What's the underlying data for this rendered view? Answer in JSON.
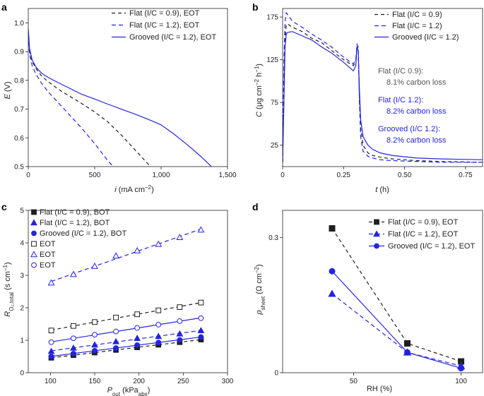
{
  "colors": {
    "black": "#1f1f1f",
    "gray": "#555555",
    "blue": "#2424e0"
  },
  "chart_data": [
    {
      "panel": "a",
      "type": "line",
      "xlabel": "i (mA cm−2)",
      "ylabel": "E (V)",
      "xlim": [
        0,
        1500
      ],
      "ylim": [
        0.5,
        1.05
      ],
      "xticks": [
        0,
        500,
        1000,
        1500
      ],
      "xtick_labels": [
        "0",
        "500",
        "1,000",
        "1,500"
      ],
      "yticks": [
        0.5,
        0.6,
        0.7,
        0.8,
        0.9,
        1.0
      ],
      "ytick_labels": [
        "0.5",
        "0.6",
        "0.7",
        "0.8",
        "0.9",
        "1.0"
      ],
      "legend_position": "top-right",
      "series": [
        {
          "name": "Flat (I/C = 0.9), EOT",
          "color": "black",
          "dash": "5,4",
          "x": [
            0,
            10,
            30,
            60,
            100,
            150,
            200,
            250,
            300,
            400,
            500,
            600,
            700,
            800,
            900,
            950
          ],
          "y": [
            0.97,
            0.9,
            0.865,
            0.84,
            0.815,
            0.795,
            0.778,
            0.762,
            0.748,
            0.72,
            0.69,
            0.655,
            0.61,
            0.56,
            0.51,
            0.485
          ]
        },
        {
          "name": "Flat (I/C = 1.2), EOT",
          "color": "blue",
          "dash": "6,4",
          "x": [
            0,
            10,
            30,
            60,
            100,
            150,
            200,
            250,
            300,
            400,
            500,
            600,
            660
          ],
          "y": [
            0.96,
            0.89,
            0.85,
            0.82,
            0.79,
            0.76,
            0.735,
            0.71,
            0.685,
            0.635,
            0.58,
            0.52,
            0.49
          ]
        },
        {
          "name": "Grooved (I/C = 1.2), EOT",
          "color": "blue",
          "dash": "",
          "x": [
            0,
            10,
            30,
            60,
            100,
            150,
            200,
            300,
            400,
            500,
            600,
            700,
            800,
            900,
            1000,
            1100,
            1200,
            1300,
            1390
          ],
          "y": [
            0.98,
            0.91,
            0.87,
            0.845,
            0.825,
            0.81,
            0.798,
            0.775,
            0.752,
            0.735,
            0.717,
            0.7,
            0.683,
            0.665,
            0.645,
            0.612,
            0.575,
            0.535,
            0.495
          ]
        }
      ]
    },
    {
      "panel": "b",
      "type": "line",
      "xlabel": "t (h)",
      "ylabel": "C (μg cm−2 h−1)",
      "xlim": [
        0,
        0.82
      ],
      "ylim": [
        0,
        185
      ],
      "xticks": [
        0,
        0.25,
        0.5,
        0.75
      ],
      "xtick_labels": [
        "0",
        "0.25",
        "0.50",
        "0.75"
      ],
      "yticks": [
        25,
        75,
        125,
        175
      ],
      "ytick_labels": [
        "25",
        "75",
        "125",
        "175"
      ],
      "legend_position": "top-right",
      "series": [
        {
          "name": "Flat (I/C = 0.9)",
          "color": "black",
          "dash": "5,4",
          "x": [
            0,
            0.005,
            0.01,
            0.015,
            0.02,
            0.04,
            0.08,
            0.12,
            0.16,
            0.2,
            0.25,
            0.29,
            0.3,
            0.305,
            0.31,
            0.315,
            0.32,
            0.33,
            0.35,
            0.37,
            0.4,
            0.45,
            0.55,
            0.65,
            0.82
          ],
          "y": [
            5,
            90,
            150,
            165,
            167,
            163,
            158,
            150,
            145,
            136,
            125,
            118,
            122,
            140,
            138,
            80,
            45,
            25,
            16,
            13,
            11,
            9,
            7,
            6,
            5
          ]
        },
        {
          "name": "Flat (I/C = 1.2)",
          "color": "blue",
          "dash": "6,4",
          "x": [
            0,
            0.005,
            0.01,
            0.015,
            0.02,
            0.04,
            0.08,
            0.12,
            0.16,
            0.2,
            0.25,
            0.29,
            0.3,
            0.305,
            0.31,
            0.315,
            0.32,
            0.33,
            0.35,
            0.37,
            0.4,
            0.45,
            0.55,
            0.65,
            0.82
          ],
          "y": [
            5,
            120,
            170,
            180,
            178,
            170,
            163,
            155,
            148,
            140,
            128,
            120,
            125,
            143,
            140,
            75,
            35,
            18,
            12,
            10,
            8,
            7,
            6,
            5,
            5
          ]
        },
        {
          "name": "Grooved (I/C = 1.2)",
          "color": "blue",
          "dash": "",
          "x": [
            0,
            0.005,
            0.01,
            0.015,
            0.02,
            0.04,
            0.08,
            0.12,
            0.16,
            0.2,
            0.25,
            0.29,
            0.3,
            0.305,
            0.31,
            0.315,
            0.32,
            0.33,
            0.35,
            0.37,
            0.4,
            0.45,
            0.55,
            0.65,
            0.82
          ],
          "y": [
            5,
            70,
            140,
            155,
            157,
            158,
            153,
            148,
            140,
            133,
            122,
            112,
            118,
            140,
            135,
            90,
            55,
            35,
            25,
            20,
            16,
            13,
            10,
            9,
            8
          ]
        }
      ],
      "annotations": [
        {
          "line1": "Flat (I/C 0.9):",
          "line2": "8.1% carbon loss",
          "color": "gray"
        },
        {
          "line1": "Flat (I/C 1.2):",
          "line2": "8.2% carbon loss",
          "color": "blue"
        },
        {
          "line1": "Grooved (I/C 1.2):",
          "line2": "8.2% carbon loss",
          "color": "blue"
        }
      ]
    },
    {
      "panel": "c",
      "type": "scatter",
      "xlabel": "P_out (kPa_abs)",
      "ylabel": "R_O2,total (s cm−1)",
      "xlim": [
        75,
        300
      ],
      "ylim": [
        0,
        5
      ],
      "xticks": [
        100,
        150,
        200,
        250,
        300
      ],
      "xtick_labels": [
        "100",
        "150",
        "200",
        "250",
        "300"
      ],
      "yticks": [
        0,
        1,
        2,
        3,
        4,
        5
      ],
      "ytick_labels": [
        "0",
        "1",
        "2",
        "3",
        "4",
        "5"
      ],
      "x": [
        101,
        126,
        150,
        174,
        198,
        222,
        246,
        270
      ],
      "legend_position": "top-left",
      "series": [
        {
          "name": "Flat (I/C = 0.9), BOT",
          "color": "black",
          "marker": "square",
          "filled": true,
          "dash": "5,4",
          "values": [
            0.46,
            0.54,
            0.62,
            0.7,
            0.78,
            0.86,
            0.94,
            1.02
          ]
        },
        {
          "name": "Flat (I/C = 1.2), BOT",
          "color": "blue",
          "marker": "triangle",
          "filled": true,
          "dash": "6,4",
          "values": [
            0.66,
            0.76,
            0.86,
            0.96,
            1.06,
            1.12,
            1.2,
            1.3
          ]
        },
        {
          "name": "Grooved (I/C = 1.2), BOT",
          "color": "blue",
          "marker": "circle",
          "filled": true,
          "dash": "",
          "values": [
            0.5,
            0.59,
            0.68,
            0.76,
            0.85,
            0.93,
            1.01,
            1.1
          ]
        },
        {
          "name": "EOT",
          "color": "black",
          "marker": "square",
          "filled": false,
          "dash": "5,4",
          "values": [
            1.3,
            1.44,
            1.56,
            1.7,
            1.8,
            1.92,
            2.02,
            2.16
          ]
        },
        {
          "name": "EOT",
          "color": "blue",
          "marker": "triangle",
          "filled": false,
          "dash": "6,4",
          "values": [
            2.77,
            3.03,
            3.28,
            3.6,
            3.76,
            3.96,
            4.17,
            4.4
          ]
        },
        {
          "name": "EOT",
          "color": "blue",
          "marker": "circle",
          "filled": false,
          "dash": "",
          "values": [
            0.94,
            1.06,
            1.17,
            1.27,
            1.38,
            1.48,
            1.59,
            1.68
          ]
        }
      ]
    },
    {
      "panel": "d",
      "type": "line",
      "xlabel": "RH (%)",
      "ylabel": "ρ_sheet (Ω cm−2)",
      "xlim": [
        17,
        110
      ],
      "ylim": [
        0,
        0.36
      ],
      "xticks": [
        50,
        100
      ],
      "xtick_labels": [
        "50",
        "100"
      ],
      "yticks": [
        0,
        0.3
      ],
      "ytick_labels": [
        "0",
        "0.3"
      ],
      "x": [
        40,
        75,
        100
      ],
      "legend_position": "top-right",
      "series": [
        {
          "name": "Flat (I/C = 0.9), EOT",
          "color": "black",
          "marker": "square",
          "dash": "5,4",
          "values": [
            0.32,
            0.065,
            0.025
          ]
        },
        {
          "name": "Flat (I/C = 1.2), EOT",
          "color": "blue",
          "marker": "triangle",
          "dash": "6,4",
          "values": [
            0.175,
            0.045,
            0.015
          ]
        },
        {
          "name": "Grooved (I/C = 1.2), EOT",
          "color": "blue",
          "marker": "circle",
          "dash": "",
          "values": [
            0.225,
            0.045,
            0.01
          ]
        }
      ]
    }
  ]
}
